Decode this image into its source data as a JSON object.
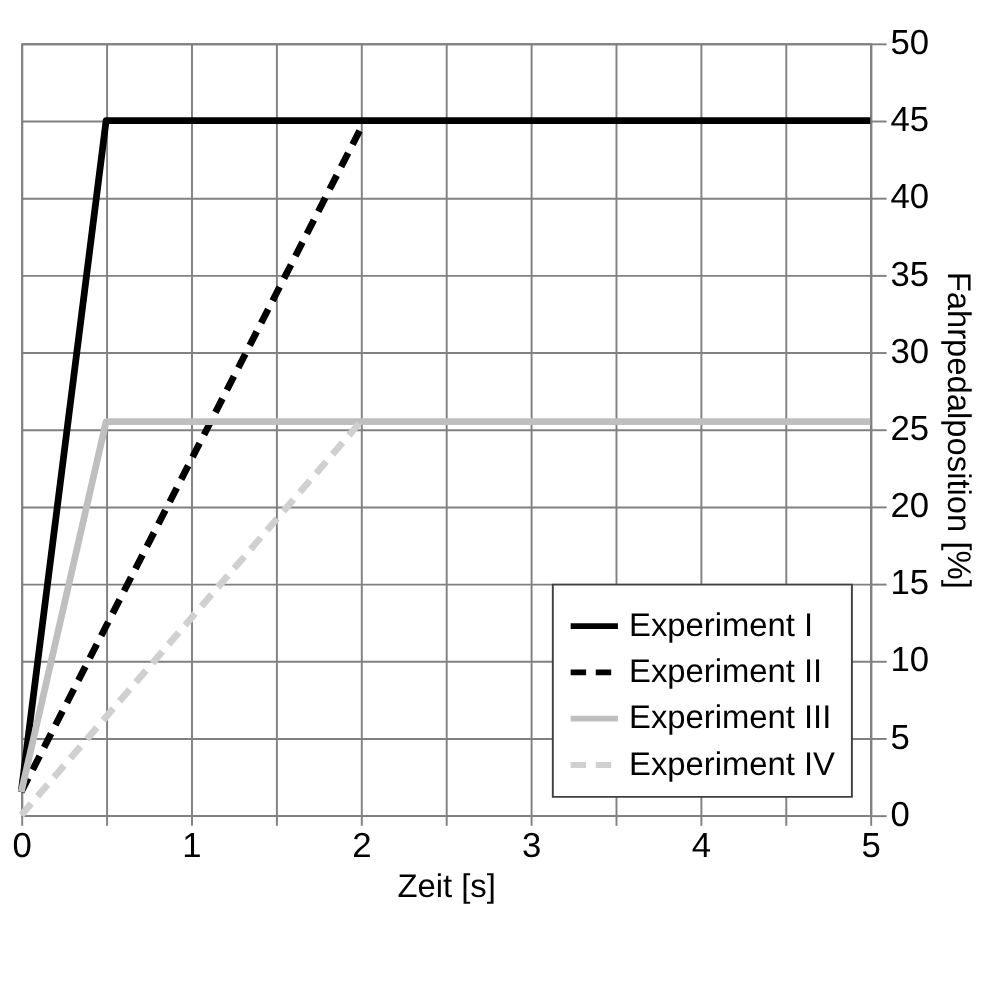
{
  "chart_data": {
    "type": "line",
    "xlabel": "Zeit [s]",
    "ylabel": "Fahrpedalposition [%]",
    "xlim": [
      0,
      5
    ],
    "xticks": [
      0,
      {
        "value": 0.5,
        "label": null
      },
      1,
      {
        "value": 1.5,
        "label": null
      },
      2,
      {
        "value": 2.5,
        "label": null
      },
      3,
      {
        "value": 3.5,
        "label": null
      },
      4,
      {
        "value": 4.5,
        "label": null
      },
      5
    ],
    "ylim": [
      0,
      50
    ],
    "yticks": [
      0,
      5,
      10,
      15,
      20,
      25,
      30,
      35,
      40,
      45,
      50
    ],
    "grid": true,
    "legend": "bottom right",
    "marker": "none",
    "series": [
      {
        "name": "Experiment I",
        "color": "#000000",
        "line_style": "solid",
        "x": [
          0,
          0.5,
          5
        ],
        "values": [
          1.5,
          45,
          45
        ]
      },
      {
        "name": "Experiment II",
        "color": "#000000",
        "line_style": "dashed",
        "x": [
          0,
          2
        ],
        "values": [
          1.5,
          44.5
        ]
      },
      {
        "name": "Experiment III",
        "color": "#bfbfbf",
        "line_style": "solid",
        "x": [
          0,
          0.5,
          5
        ],
        "values": [
          1.5,
          25.5,
          25.5
        ]
      },
      {
        "name": "Experiment IV",
        "color": "#d0d0d0",
        "line_style": "dashed",
        "x": [
          0,
          2
        ],
        "values": [
          0,
          25.5
        ]
      }
    ]
  }
}
